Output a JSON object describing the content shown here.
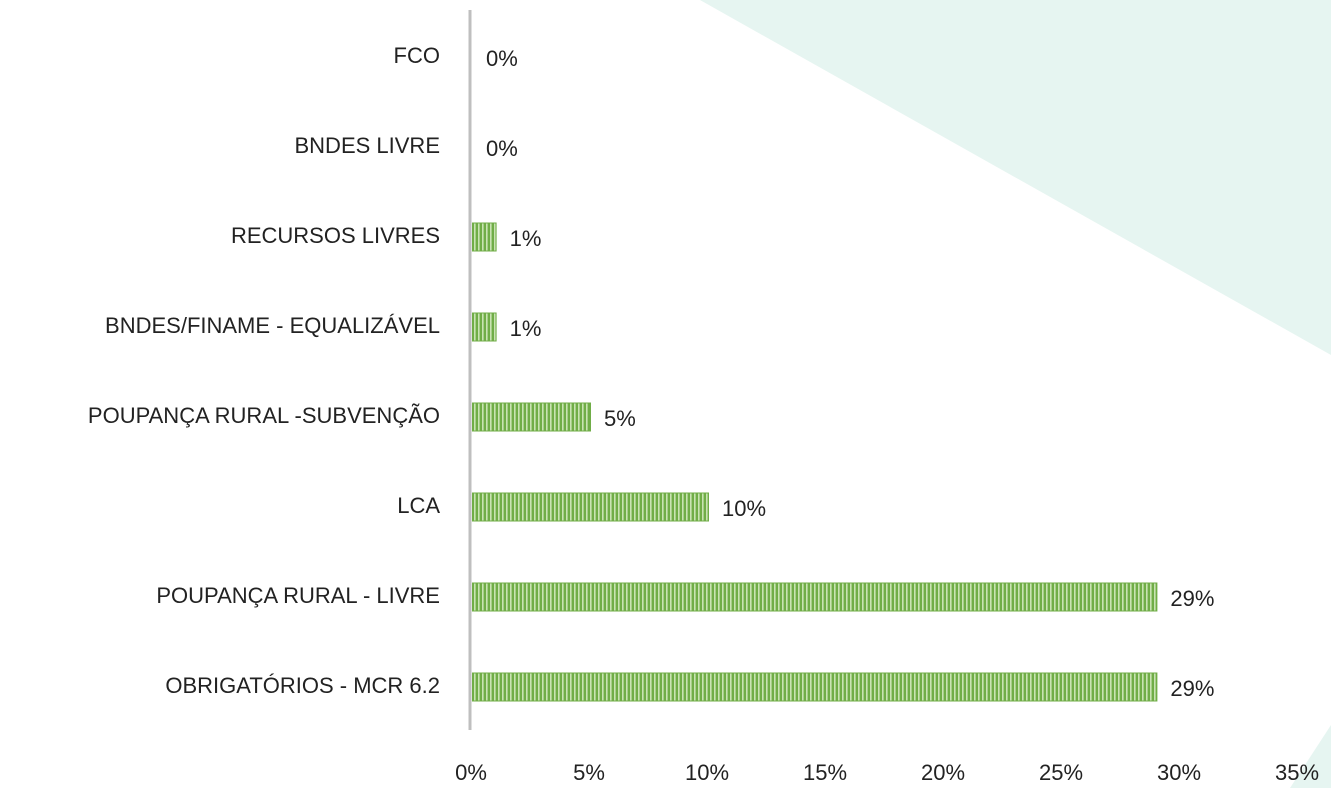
{
  "chart_data": {
    "type": "bar",
    "orientation": "horizontal",
    "categories": [
      "FCO",
      "BNDES LIVRE",
      "RECURSOS LIVRES",
      "BNDES/FINAME - EQUALIZÁVEL",
      "POUPANÇA RURAL -SUBVENÇÃO",
      "LCA",
      "POUPANÇA RURAL - LIVRE",
      "OBRIGATÓRIOS - MCR 6.2"
    ],
    "values": [
      0,
      0,
      1,
      1,
      5,
      10,
      29,
      29
    ],
    "value_labels": [
      "0%",
      "0%",
      "1%",
      "1%",
      "5%",
      "10%",
      "29%",
      "29%"
    ],
    "color": "#70ad47",
    "xlim": [
      0,
      35
    ],
    "xticks": [
      {
        "value": 0,
        "label": "0%"
      },
      {
        "value": 5,
        "label": "5%"
      },
      {
        "value": 10,
        "label": "10%"
      },
      {
        "value": 15,
        "label": "15%"
      },
      {
        "value": 20,
        "label": "20%"
      },
      {
        "value": 25,
        "label": "25%"
      },
      {
        "value": 30,
        "label": "30%"
      },
      {
        "value": 35,
        "label": "35%"
      }
    ],
    "grid": false
  }
}
